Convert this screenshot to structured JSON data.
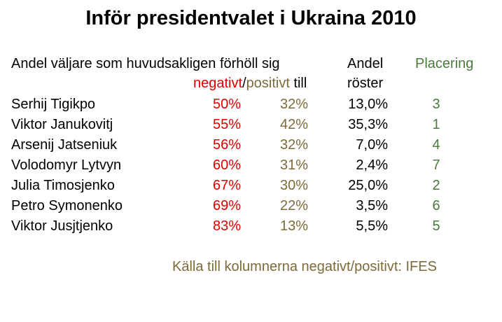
{
  "title": "Inför presidentvalet i Ukraina 2010",
  "headers": {
    "col1_line1": "Andel väljare som huvudsakligen förhöll sig",
    "neg_word": "negativt",
    "slash": "/",
    "pos_word": "positivt",
    "till_word": " till",
    "vote_line1": "Andel",
    "vote_line2": "röster",
    "placement": "Placering"
  },
  "rows": [
    {
      "name": "Serhij Tigikpo",
      "negative": "50%",
      "positive": "32%",
      "votes": "13,0%",
      "place": "3"
    },
    {
      "name": "Viktor Janukovitj",
      "negative": "55%",
      "positive": "42%",
      "votes": "35,3%",
      "place": "1"
    },
    {
      "name": "Arsenij Jatseniuk",
      "negative": "56%",
      "positive": "32%",
      "votes": "7,0%",
      "place": "4"
    },
    {
      "name": "Volodomyr Lytvyn",
      "negative": "60%",
      "positive": "31%",
      "votes": "2,4%",
      "place": "7"
    },
    {
      "name": "Julia Timosjenko",
      "negative": "67%",
      "positive": "30%",
      "votes": "25,0%",
      "place": "2"
    },
    {
      "name": "Petro Symonenko",
      "negative": "69%",
      "positive": "22%",
      "votes": "3,5%",
      "place": "6"
    },
    {
      "name": "Viktor Jusjtjenko",
      "negative": "83%",
      "positive": "13%",
      "votes": "5,5%",
      "place": "5"
    }
  ],
  "source": "Källa till kolumnerna negativt/positivt: IFES",
  "colors": {
    "negative": "#e00000",
    "positive": "#7d6a3a",
    "placement": "#4b7a3d"
  }
}
